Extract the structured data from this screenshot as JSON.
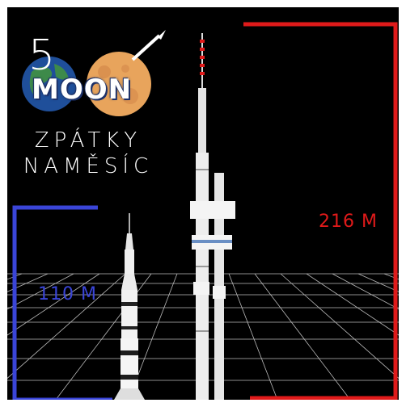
{
  "logo": {
    "number": "5",
    "word": "MOON",
    "line1": "ZPÁTKY",
    "line2": "NAMĚSÍC"
  },
  "saturn_v": {
    "height_label": "110 M",
    "color": "#3a45d8"
  },
  "zizkov_tower": {
    "height_label": "216 M",
    "color": "#e01a1a"
  },
  "grid_color": "#d9d9d9"
}
